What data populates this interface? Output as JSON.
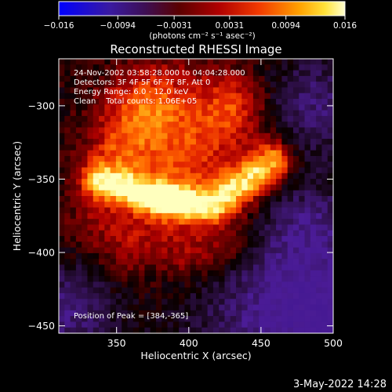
{
  "chart_data": {
    "type": "heatmap",
    "title": "Reconstructed RHESSI Image",
    "xlabel": "Heliocentric X (arcsec)",
    "ylabel": "Heliocentric Y (arcsec)",
    "xlim": [
      310,
      500
    ],
    "ylim": [
      -455,
      -268
    ],
    "x_ticks": [
      "350",
      "400",
      "450",
      "500"
    ],
    "y_ticks": [
      "-300",
      "-350",
      "-400",
      "-450"
    ],
    "x_tick_values": [
      350,
      400,
      450,
      500
    ],
    "y_tick_values": [
      -300,
      -350,
      -400,
      -450
    ],
    "colorbar": {
      "min": -0.016,
      "max": 0.016,
      "ticks": [
        "-0.016",
        "-0.0094",
        "-0.0031",
        "0.0031",
        "0.0094",
        "0.016"
      ],
      "tick_values": [
        -0.016,
        -0.0094,
        -0.0031,
        0.0031,
        0.0094,
        0.016
      ],
      "label": "(photons cm⁻² s⁻¹ asec⁻²)"
    },
    "info_lines": [
      "24-Nov-2002 03:58:28.000 to 04:04:28.000",
      "Detectors: 3F 4F 5F 6F 7F 8F, Att 0",
      "Energy Range: 6.0 - 12.0 keV",
      "Clean    Total counts: 1.06E+05"
    ],
    "peak_text": "Position of Peak = [384,-365]",
    "peak": [
      384,
      -365
    ],
    "colors": {
      "background": "#000000",
      "text": "#ffffff",
      "negative": "#4a1d9c",
      "peak": "#ffffb0"
    }
  },
  "footer": {
    "timestamp": "3-May-2022 14:28"
  }
}
